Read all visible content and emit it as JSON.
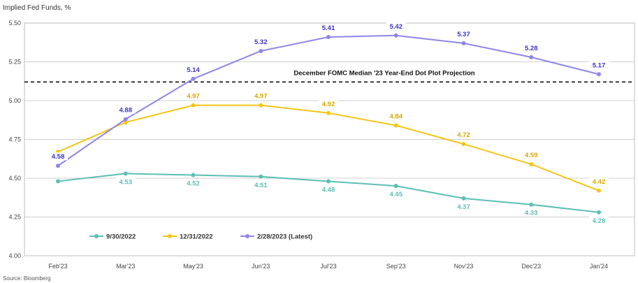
{
  "chart_data": {
    "type": "line",
    "ylabel": "Implied Fed Funds, %",
    "source": "Source: Bloomberg",
    "ylim": [
      4.0,
      5.5
    ],
    "yticks": [
      "4.00",
      "4.25",
      "4.50",
      "4.75",
      "5.00",
      "5.25",
      "5.50"
    ],
    "categories": [
      "Feb'23",
      "Mar'23",
      "May'23",
      "Jun'23",
      "Jul'23",
      "Sep'23",
      "Nov'23",
      "Dec'23",
      "Jan'24"
    ],
    "grid": true,
    "legend_placement": "bottom-left",
    "reference_line": {
      "value": 5.12,
      "label": "December FOMC Median '23 Year-End Dot Plot Projection",
      "style": "dashed",
      "color": "#111111"
    },
    "series": [
      {
        "name": "9/30/2022",
        "color": "#5bbfb5",
        "values": [
          4.48,
          4.53,
          4.52,
          4.51,
          4.48,
          4.45,
          4.37,
          4.33,
          4.28
        ],
        "labels": [
          "",
          "4.53",
          "4.52",
          "4.51",
          "4.48",
          "4.45",
          "4.37",
          "4.33",
          "4.28"
        ],
        "label_position": "below"
      },
      {
        "name": "12/31/2022",
        "color": "#f5c518",
        "label_color": "#d9a800",
        "values": [
          4.67,
          4.86,
          4.97,
          4.97,
          4.92,
          4.84,
          4.72,
          4.59,
          4.42
        ],
        "labels": [
          "",
          "",
          "4.97",
          "4.97",
          "4.92",
          "4.84",
          "4.72",
          "4.59",
          "4.42"
        ],
        "label_position": "above"
      },
      {
        "name": "2/28/2023 (Latest)",
        "color": "#8e86e8",
        "label_color": "#3b33c9",
        "values": [
          4.58,
          4.88,
          5.14,
          5.32,
          5.41,
          5.42,
          5.37,
          5.28,
          5.17
        ],
        "labels": [
          "4.58",
          "4.88",
          "5.14",
          "5.32",
          "5.41",
          "5.42",
          "5.37",
          "5.28",
          "5.17"
        ],
        "label_position": "above"
      }
    ]
  }
}
